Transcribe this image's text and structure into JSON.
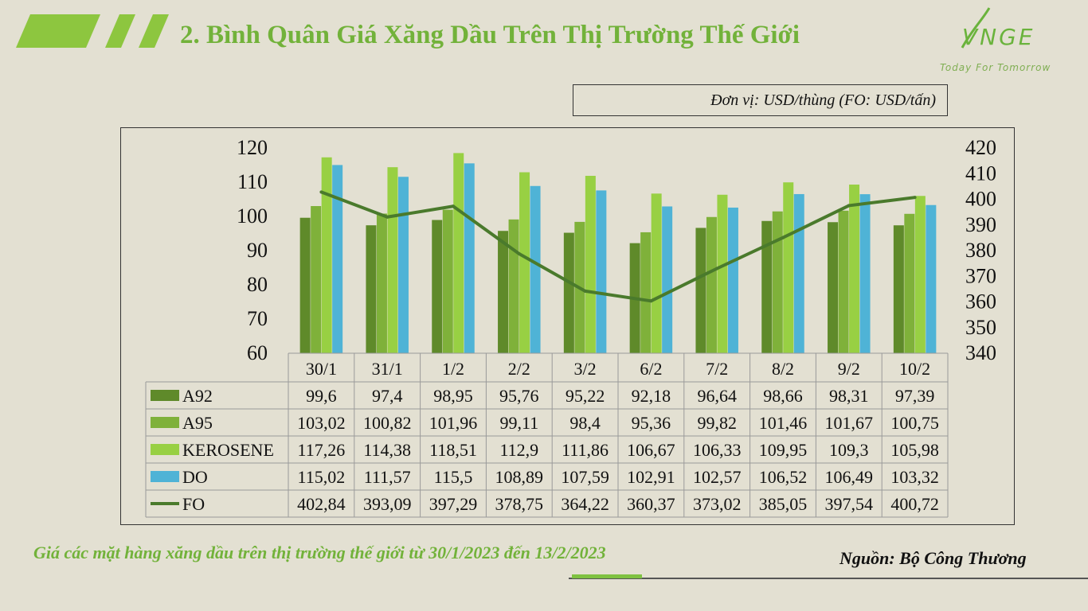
{
  "header": {
    "title": "2. Bình Quân Giá Xăng Dầu Trên Thị Trường Thế Giới",
    "logo_text": "VNGE",
    "logo_tagline": "Today For Tomorrow"
  },
  "unit_note": "Đơn vị: USD/thùng (FO: USD/tấn)",
  "caption": "Giá các mặt hàng xăng dầu trên thị trường thế giới từ 30/1/2023 đến 13/2/2023",
  "source": "Nguồn: Bộ Công Thương",
  "colors": {
    "accent": "#72b23a",
    "A92": "#5f8a2a",
    "A95": "#7fb13a",
    "KEROSENE": "#98d043",
    "DO": "#4fb3d6",
    "FO": "#4a7a2c"
  },
  "chart_data": {
    "type": "bar",
    "categories": [
      "30/1",
      "31/1",
      "1/2",
      "2/2",
      "3/2",
      "6/2",
      "7/2",
      "8/2",
      "9/2",
      "10/2"
    ],
    "y_left": {
      "lim": [
        60,
        120
      ],
      "ticks": [
        60,
        70,
        80,
        90,
        100,
        110,
        120
      ]
    },
    "y_right": {
      "lim": [
        340,
        420
      ],
      "ticks": [
        340,
        350,
        360,
        370,
        380,
        390,
        400,
        410,
        420
      ]
    },
    "grid": false,
    "legend": "table-left",
    "series": [
      {
        "name": "A92",
        "type": "bar",
        "axis": "left",
        "values": [
          99.6,
          97.4,
          98.95,
          95.76,
          95.22,
          92.18,
          96.64,
          98.66,
          98.31,
          97.39
        ],
        "labels": [
          "99,6",
          "97,4",
          "98,95",
          "95,76",
          "95,22",
          "92,18",
          "96,64",
          "98,66",
          "98,31",
          "97,39"
        ]
      },
      {
        "name": "A95",
        "type": "bar",
        "axis": "left",
        "values": [
          103.02,
          100.82,
          101.96,
          99.11,
          98.4,
          95.36,
          99.82,
          101.46,
          101.67,
          100.75
        ],
        "labels": [
          "103,02",
          "100,82",
          "101,96",
          "99,11",
          "98,4",
          "95,36",
          "99,82",
          "101,46",
          "101,67",
          "100,75"
        ]
      },
      {
        "name": "KEROSENE",
        "type": "bar",
        "axis": "left",
        "values": [
          117.26,
          114.38,
          118.51,
          112.9,
          111.86,
          106.67,
          106.33,
          109.95,
          109.3,
          105.98
        ],
        "labels": [
          "117,26",
          "114,38",
          "118,51",
          "112,9",
          "111,86",
          "106,67",
          "106,33",
          "109,95",
          "109,3",
          "105,98"
        ]
      },
      {
        "name": "DO",
        "type": "bar",
        "axis": "left",
        "values": [
          115.02,
          111.57,
          115.5,
          108.89,
          107.59,
          102.91,
          102.57,
          106.52,
          106.49,
          103.32
        ],
        "labels": [
          "115,02",
          "111,57",
          "115,5",
          "108,89",
          "107,59",
          "102,91",
          "102,57",
          "106,52",
          "106,49",
          "103,32"
        ]
      },
      {
        "name": "FO",
        "type": "line",
        "axis": "right",
        "values": [
          402.84,
          393.09,
          397.29,
          378.75,
          364.22,
          360.37,
          373.02,
          385.05,
          397.54,
          400.72
        ],
        "labels": [
          "402,84",
          "393,09",
          "397,29",
          "378,75",
          "364,22",
          "360,37",
          "373,02",
          "385,05",
          "397,54",
          "400,72"
        ]
      }
    ]
  }
}
